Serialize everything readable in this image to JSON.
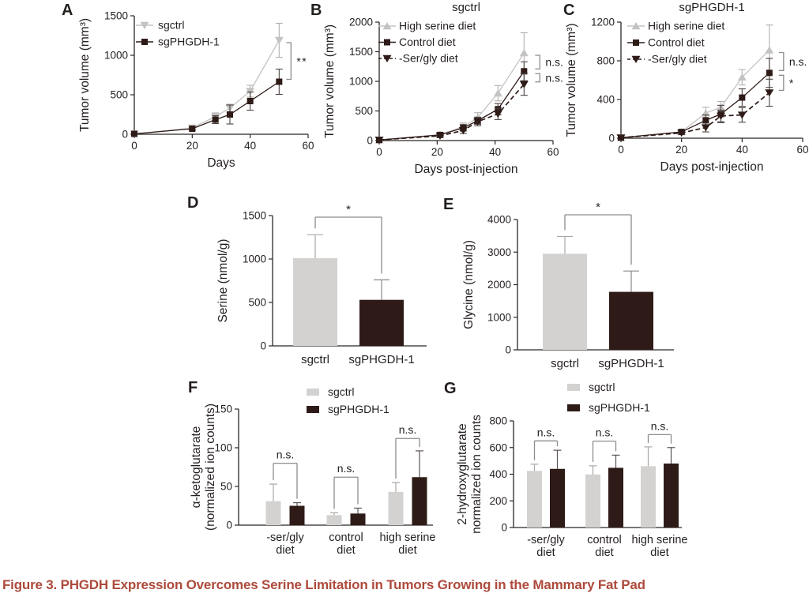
{
  "colors": {
    "axis": "#2b2724",
    "text": "#231f1e",
    "sig_bracket": "#8f8c8a",
    "light_gray_series": "#c5c3c2",
    "bar_gray": "#d3d2d1",
    "dark": "#2e1b18",
    "caption": "#ad4a3c"
  },
  "caption": {
    "text": "Figure 3.  PHGDH Expression Overcomes Serine Limitation in Tumors Growing in the Mammary Fat Pad"
  },
  "chart_data": [
    {
      "id": "A",
      "panel_letter": "A",
      "type": "line",
      "title": "",
      "xlabel": "Days",
      "ylabel": "Tumor volume (mm³)",
      "xlim": [
        0,
        60
      ],
      "ylim": [
        0,
        1500
      ],
      "xticks": [
        0,
        20,
        40,
        60
      ],
      "yticks": [
        0,
        500,
        1000,
        1500
      ],
      "series": [
        {
          "name": "sgctrl",
          "marker": "triangle-down",
          "dashed": false,
          "color": "#c5c3c2",
          "err_color": "#b2b0af",
          "x": [
            0,
            20,
            28,
            33,
            40,
            50
          ],
          "y": [
            5,
            80,
            225,
            330,
            545,
            1190
          ],
          "err": [
            0,
            25,
            45,
            50,
            75,
            215
          ]
        },
        {
          "name": "sgPHGDH-1",
          "marker": "square",
          "dashed": false,
          "color": "#2e1b18",
          "err_color": "#4c4543",
          "x": [
            0,
            20,
            28,
            33,
            40,
            50
          ],
          "y": [
            5,
            70,
            185,
            250,
            420,
            665
          ],
          "err": [
            0,
            18,
            50,
            120,
            115,
            160
          ]
        }
      ],
      "sig": [
        {
          "label": "**",
          "from": 1190,
          "to": 665,
          "at_x": 50,
          "dx": 15
        }
      ]
    },
    {
      "id": "B",
      "panel_letter": "B",
      "type": "line",
      "title": "sgctrl",
      "xlabel": "Days post-injection",
      "ylabel": "Tumor volume (mm³)",
      "xlim": [
        0,
        60
      ],
      "ylim": [
        0,
        2000
      ],
      "xticks": [
        0,
        20,
        40,
        60
      ],
      "yticks": [
        0,
        500,
        1000,
        1500,
        2000
      ],
      "series": [
        {
          "name": "High serine diet",
          "marker": "triangle-up",
          "dashed": false,
          "color": "#c5c3c2",
          "err_color": "#b2b0af",
          "x": [
            0,
            21,
            29,
            34,
            41,
            50
          ],
          "y": [
            10,
            100,
            235,
            390,
            800,
            1480
          ],
          "err": [
            0,
            30,
            60,
            80,
            130,
            340
          ]
        },
        {
          "name": "Control diet",
          "marker": "square",
          "dashed": false,
          "color": "#2e1b18",
          "err_color": "#4c4543",
          "x": [
            0,
            21,
            29,
            34,
            41,
            50
          ],
          "y": [
            10,
            95,
            215,
            335,
            530,
            1170
          ],
          "err": [
            0,
            25,
            55,
            60,
            95,
            160
          ]
        },
        {
          "name": "-Ser/gly diet",
          "marker": "triangle-down",
          "dashed": true,
          "color": "#2e1b18",
          "err_color": "#4c4543",
          "x": [
            0,
            21,
            29,
            34,
            41,
            50
          ],
          "y": [
            10,
            80,
            170,
            320,
            450,
            950
          ],
          "err": [
            0,
            20,
            50,
            70,
            95,
            185
          ]
        }
      ],
      "sig": [
        {
          "label": "n.s.",
          "from": 1480,
          "to": 1170,
          "at_x": 50,
          "dx": 20
        },
        {
          "label": "n.s.",
          "from": 1170,
          "to": 950,
          "at_x": 50,
          "dx": 20
        }
      ]
    },
    {
      "id": "C",
      "panel_letter": "C",
      "type": "line",
      "title": "sgPHGDH-1",
      "xlabel": "Days post-injection",
      "ylabel": "Tumor volume (mm³)",
      "xlim": [
        0,
        60
      ],
      "ylim": [
        0,
        1200
      ],
      "xticks": [
        0,
        20,
        40,
        60
      ],
      "yticks": [
        0,
        400,
        800,
        1200
      ],
      "series": [
        {
          "name": "High serine diet",
          "marker": "triangle-up",
          "dashed": false,
          "color": "#c5c3c2",
          "err_color": "#b2b0af",
          "x": [
            0,
            20,
            28,
            33,
            40,
            49
          ],
          "y": [
            5,
            65,
            260,
            320,
            630,
            910
          ],
          "err": [
            0,
            18,
            60,
            60,
            80,
            260
          ]
        },
        {
          "name": "Control diet",
          "marker": "square",
          "dashed": false,
          "color": "#2e1b18",
          "err_color": "#4c4543",
          "x": [
            0,
            20,
            28,
            33,
            40,
            49
          ],
          "y": [
            5,
            65,
            185,
            250,
            420,
            675
          ],
          "err": [
            0,
            15,
            55,
            90,
            90,
            150
          ]
        },
        {
          "name": "-Ser/gly diet",
          "marker": "triangle-down",
          "dashed": true,
          "color": "#2e1b18",
          "err_color": "#4c4543",
          "x": [
            0,
            20,
            28,
            33,
            40,
            49
          ],
          "y": [
            5,
            55,
            110,
            230,
            240,
            470
          ],
          "err": [
            0,
            12,
            45,
            60,
            75,
            140
          ]
        }
      ],
      "sig": [
        {
          "label": "n.s.",
          "from": 910,
          "to": 675,
          "at_x": 49,
          "dx": 18
        },
        {
          "label": "*",
          "from": 675,
          "to": 470,
          "at_x": 49,
          "dx": 18
        }
      ]
    },
    {
      "id": "D",
      "panel_letter": "D",
      "type": "bar",
      "ylabel": "Serine (nmol/g)",
      "ylim": [
        0,
        1500
      ],
      "yticks": [
        0,
        500,
        1000,
        1500
      ],
      "bars": [
        {
          "label": "sgctrl",
          "value": 1010,
          "err": 270,
          "color": "#d3d2d1",
          "err_color": "#a9a7a6"
        },
        {
          "label": "sgPHGDH-1",
          "value": 530,
          "err": 230,
          "color": "#2e1b18",
          "err_color": "#8b8887"
        }
      ],
      "sig": [
        {
          "label": "*"
        }
      ]
    },
    {
      "id": "E",
      "panel_letter": "E",
      "type": "bar",
      "ylabel": "Glycine (nmol/g)",
      "ylim": [
        0,
        4000
      ],
      "yticks": [
        0,
        1000,
        2000,
        3000,
        4000
      ],
      "bars": [
        {
          "label": "sgctrl",
          "value": 2950,
          "err": 530,
          "color": "#d3d2d1",
          "err_color": "#a9a7a6"
        },
        {
          "label": "sgPHGDH-1",
          "value": 1780,
          "err": 640,
          "color": "#2e1b18",
          "err_color": "#8b8887"
        }
      ],
      "sig": [
        {
          "label": "*"
        }
      ]
    },
    {
      "id": "F",
      "panel_letter": "F",
      "type": "groupedbar",
      "ylabel": [
        "α-ketoglutarate",
        "(normalized ion counts)"
      ],
      "ylim": [
        0,
        150
      ],
      "yticks": [
        0,
        50,
        100,
        150
      ],
      "categories": [
        [
          "-ser/gly",
          "diet"
        ],
        [
          "control",
          "diet"
        ],
        [
          "high serine",
          "diet"
        ]
      ],
      "series": [
        {
          "name": "sgctrl",
          "color": "#d3d2d1",
          "err_color": "#a9a7a6",
          "values": [
            31,
            13,
            43
          ],
          "err": [
            22,
            3,
            12
          ]
        },
        {
          "name": "sgPHGDH-1",
          "color": "#2e1b18",
          "err_color": "#5c5553",
          "values": [
            25,
            15,
            62
          ],
          "err": [
            4,
            7,
            34
          ]
        }
      ],
      "sig": [
        {
          "label": "n.s.",
          "y": 80
        },
        {
          "label": "n.s.",
          "y": 62
        },
        {
          "label": "n.s.",
          "y": 112
        }
      ]
    },
    {
      "id": "G",
      "panel_letter": "G",
      "type": "groupedbar",
      "ylabel": [
        "2-hydroxyglutarate",
        "normalized ion counts"
      ],
      "ylim": [
        0,
        800
      ],
      "yticks": [
        0,
        200,
        400,
        600,
        800
      ],
      "categories": [
        [
          "-ser/gly",
          "diet"
        ],
        [
          "control",
          "diet"
        ],
        [
          "high serine",
          "diet"
        ]
      ],
      "series": [
        {
          "name": "sgctrl",
          "color": "#d3d2d1",
          "err_color": "#a9a7a6",
          "values": [
            425,
            398,
            460
          ],
          "err": [
            50,
            65,
            145
          ]
        },
        {
          "name": "sgPHGDH-1",
          "color": "#2e1b18",
          "err_color": "#5c5553",
          "values": [
            440,
            448,
            480
          ],
          "err": [
            140,
            95,
            120
          ]
        }
      ],
      "sig": [
        {
          "label": "n.s.",
          "y": 650
        },
        {
          "label": "n.s.",
          "y": 648
        },
        {
          "label": "n.s.",
          "y": 697
        }
      ]
    }
  ]
}
